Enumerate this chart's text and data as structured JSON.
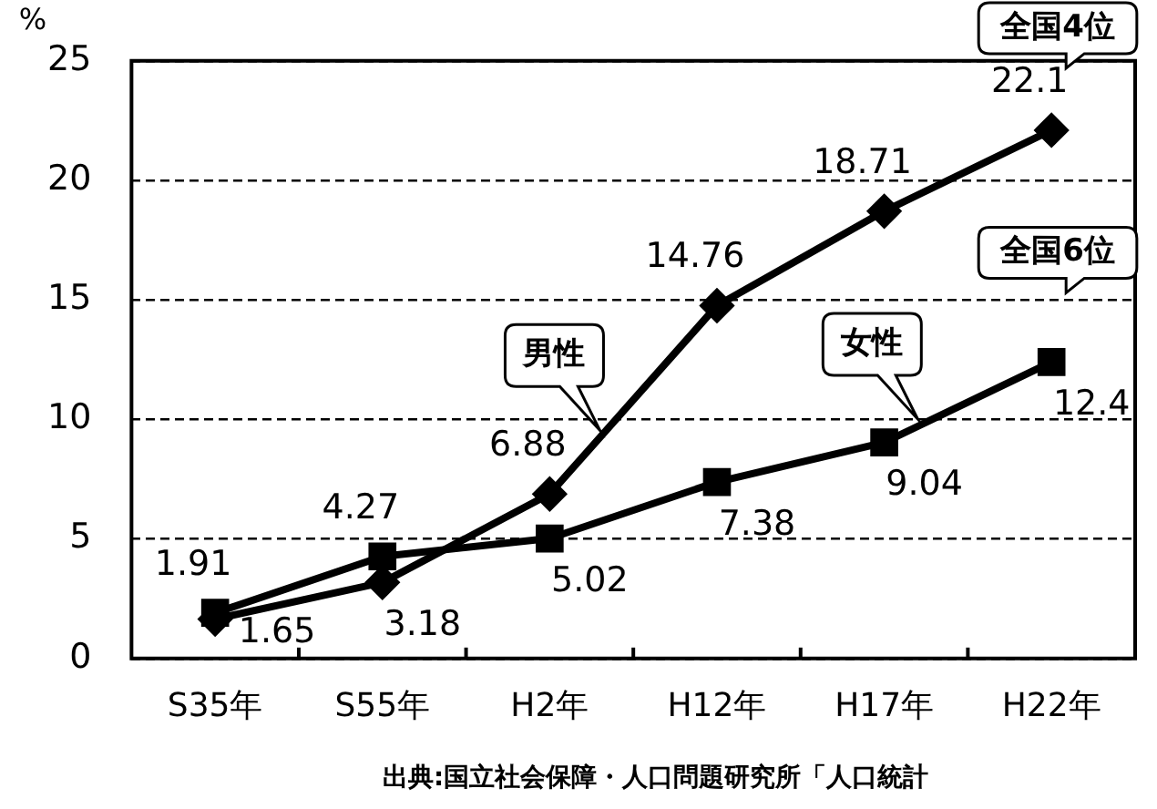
{
  "chart_data": {
    "type": "line",
    "ylabel": "%",
    "categories": [
      "S35年",
      "S55年",
      "H2年",
      "H12年",
      "H17年",
      "H22年"
    ],
    "series": [
      {
        "name": "男性",
        "color": "#000000",
        "marker": "diamond",
        "values": [
          1.65,
          3.18,
          6.88,
          14.76,
          18.71,
          22.1
        ]
      },
      {
        "name": "女性",
        "color": "#000000",
        "marker": "square",
        "values": [
          1.91,
          4.27,
          5.02,
          7.38,
          9.04,
          12.4
        ]
      }
    ],
    "ylim": [
      0,
      25
    ],
    "yticks": [
      0,
      5,
      10,
      15,
      20,
      25
    ],
    "grid": "y",
    "legend": false,
    "data_labels": true,
    "line_style": "solid",
    "annotations": [
      {
        "text": "全国4位",
        "x": "H22年",
        "y": 22.1
      },
      {
        "text": "全国6位",
        "x": "H22年",
        "y": 12.4
      },
      "出典:国立社会保障・人口問題研究所「人口統計"
    ]
  }
}
